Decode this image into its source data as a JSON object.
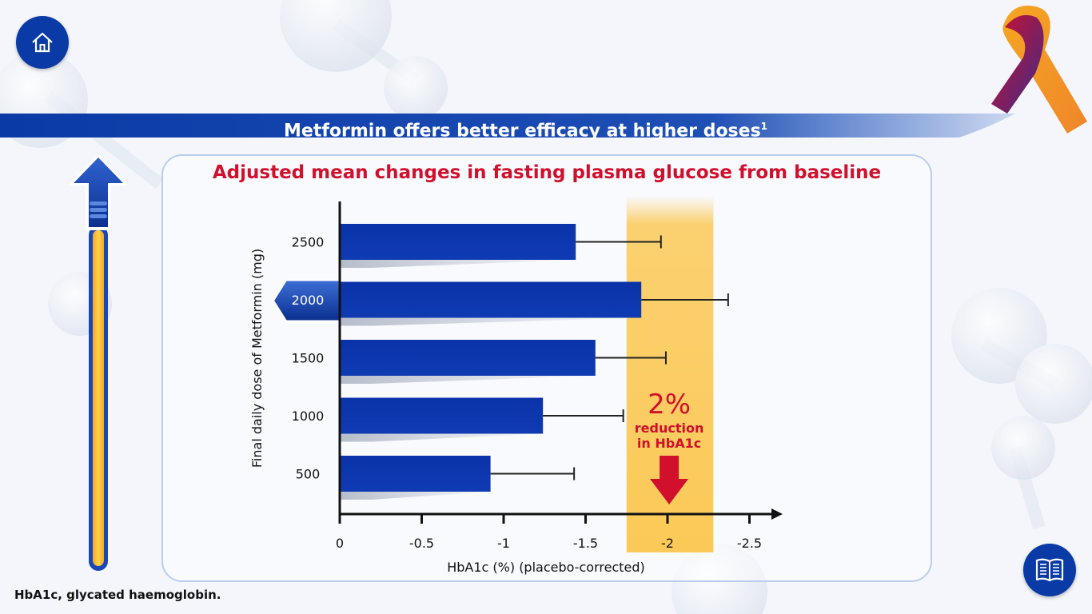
{
  "header": {
    "title": "Metformin offers better efficacy at higher doses",
    "title_ref": "1"
  },
  "icons": {
    "home": "home-icon",
    "book": "book-icon",
    "ribbon": "awareness-ribbon-icon",
    "slider_handle": "menu-lines-icon"
  },
  "chart_data": {
    "type": "bar",
    "orientation": "horizontal",
    "title": "Adjusted mean changes in fasting plasma glucose from baseline",
    "xlabel": "HbA1c (%) (placebo-corrected)",
    "ylabel": "Final daily dose of Metformin (mg)",
    "categories": [
      "2500",
      "2000",
      "1500",
      "1000",
      "500"
    ],
    "values": [
      -1.44,
      -1.84,
      -1.56,
      -1.24,
      -0.92
    ],
    "error_upper": [
      -1.96,
      -2.37,
      -1.99,
      -1.73,
      -1.43
    ],
    "xlim": [
      0,
      -2.6
    ],
    "xticks": [
      0,
      -0.5,
      -1,
      -1.5,
      -2,
      -2.5
    ],
    "xtick_labels": [
      "0",
      "-0.5",
      "-1",
      "-1.5",
      "-2",
      "-2.5"
    ],
    "highlight_band": [
      -1.75,
      -2.28
    ],
    "selected_category": "2000",
    "annotation": {
      "big": "2%",
      "line1": "reduction",
      "line2": "in HbA1c"
    },
    "colors": {
      "bar": "#0a33a8",
      "band": "#fbc957",
      "annotation": "#d0102c"
    },
    "grid": false,
    "legend": "none"
  },
  "footnote": "HbA1c, glycated haemoglobin."
}
